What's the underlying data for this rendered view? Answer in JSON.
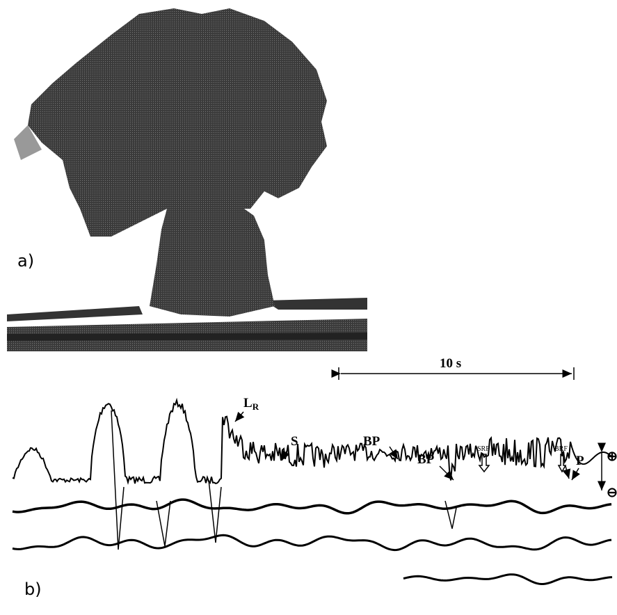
{
  "panel_a": {
    "label": "a)"
  },
  "panel_b": {
    "label": "b)",
    "scale_bar": "10 s",
    "annotations": {
      "lr_main": "L",
      "lr_sub": "R",
      "s": "S",
      "bp1": "BP",
      "bp2": "BP",
      "srf": "SRF",
      "brf": "BRF",
      "p": "P",
      "plus": "⊕",
      "minus": "⊖"
    }
  }
}
